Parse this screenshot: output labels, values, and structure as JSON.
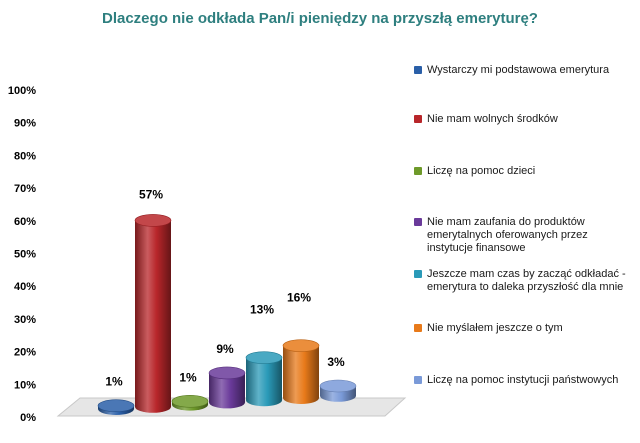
{
  "chart_data": {
    "type": "bar",
    "title": "Dlaczego nie odkłada Pan/i pieniędzy na przyszłą emeryturę?",
    "ylim": [
      0,
      100
    ],
    "yticks": [
      "0%",
      "10%",
      "20%",
      "30%",
      "40%",
      "50%",
      "60%",
      "70%",
      "80%",
      "90%",
      "100%"
    ],
    "legend_position": "right",
    "grid": false,
    "categories": [
      "Wystarczy mi podstawowa emerytura",
      "Nie mam wolnych środków",
      "Liczę na pomoc dzieci",
      "Nie mam zaufania do produktów emerytalnych oferowanych przez instytucje finansowe",
      "Jeszcze mam czas by zacząć odkładać - emerytura to daleka przyszłość dla mnie",
      "Nie myślałem jeszcze o tym",
      "Liczę na pomoc instytucji państwowych"
    ],
    "values": [
      1,
      57,
      1,
      9,
      13,
      16,
      3
    ],
    "data_labels": [
      "1%",
      "57%",
      "1%",
      "9%",
      "13%",
      "16%",
      "3%"
    ],
    "colors": [
      "#2a5fa8",
      "#b8262a",
      "#6e9a2a",
      "#6a3a9a",
      "#2a9ab8",
      "#e87a1a",
      "#7a9ad8"
    ],
    "legend_labels": [
      "Wystarczy mi podstawowa emerytura",
      "Nie mam wolnych środków",
      "Liczę na pomoc dzieci",
      "Nie mam zaufania do produktów emerytalnych oferowanych przez instytucje finansowe",
      "Jeszcze mam czas by zacząć odkładać - emerytura to daleka przyszłość dla mnie",
      "Nie myślałem jeszcze o tym",
      "Liczę na pomoc instytucji państwowych"
    ]
  }
}
